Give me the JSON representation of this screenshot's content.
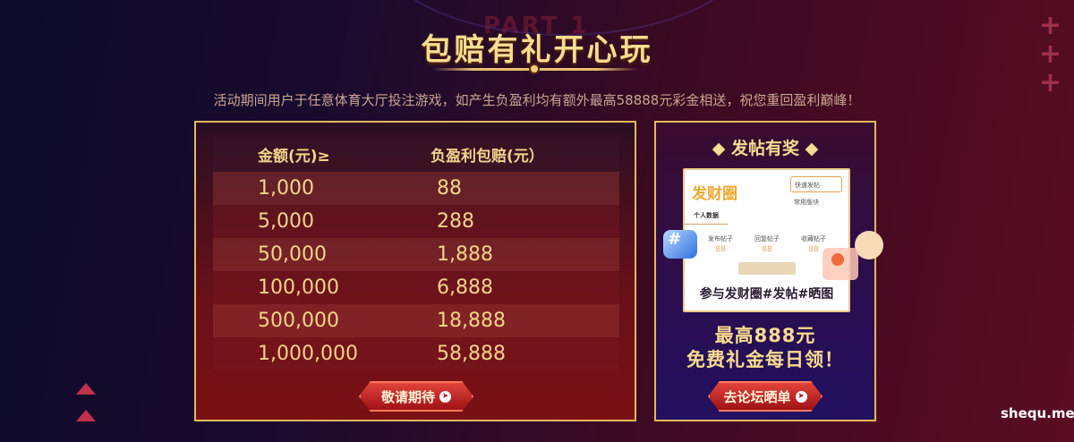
{
  "header": {
    "watermark_part": "PART 1",
    "title": "包赔有礼开心玩",
    "subtitle": "活动期间用户于任意体育大厅投注游戏，如产生负盈利均有额外最高58888元彩金相送，祝您重回盈利巅峰！"
  },
  "table": {
    "headers": [
      "金额(元)≥",
      "负盈利包赔(元）"
    ],
    "rows": [
      [
        "1,000",
        "88"
      ],
      [
        "5,000",
        "288"
      ],
      [
        "50,000",
        "1,888"
      ],
      [
        "100,000",
        "6,888"
      ],
      [
        "500,000",
        "18,888"
      ],
      [
        "1,000,000",
        "58,888"
      ]
    ],
    "button": "敬请期待"
  },
  "promo": {
    "title": "发帖有奖",
    "card": {
      "logo": "发财圈",
      "quick_post": "快速发帖",
      "common": "常用版块",
      "tab": "个人数据",
      "stats": [
        {
          "label": "发布帖子",
          "value": "88"
        },
        {
          "label": "回复帖子",
          "value": "88"
        },
        {
          "label": "收藏帖子",
          "value": "88"
        }
      ],
      "caption": "参与发财圈#发帖#晒图",
      "hash": "#"
    },
    "line1": "最高888元",
    "line2": "免费礼金每日领！",
    "button": "去论坛晒单"
  },
  "watermark": "shequ.me",
  "colors": {
    "gold": "#f8dc8f",
    "border": "#e6b85e",
    "button": "#c8201e"
  }
}
